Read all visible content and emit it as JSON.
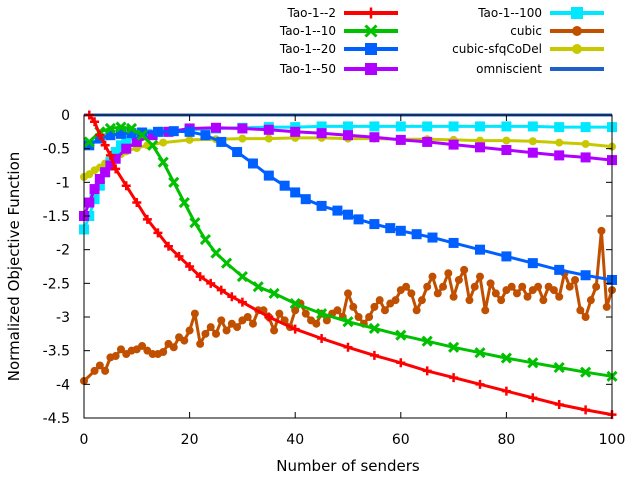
{
  "chart_data": {
    "type": "line",
    "title": "",
    "xlabel": "Number of senders",
    "ylabel": "Normalized Objective Function",
    "xlim": [
      0,
      100
    ],
    "ylim": [
      -4.5,
      0
    ],
    "xticks": [
      0,
      20,
      40,
      60,
      80,
      100
    ],
    "yticks": [
      0,
      -0.5,
      -1,
      -1.5,
      -2,
      -2.5,
      -3,
      -3.5,
      -4,
      -4.5
    ],
    "xtick_labels": [
      "0",
      "20",
      "40",
      "60",
      "80",
      "100"
    ],
    "ytick_labels": [
      "0",
      "-0.5",
      "-1",
      "-1.5",
      "-2",
      "-2.5",
      "-3",
      "-3.5",
      "-4",
      "-4.5"
    ],
    "grid": false,
    "legend": "top",
    "series": [
      {
        "name": "Tao-1--2",
        "color": "#ff0000",
        "marker": "plus",
        "x": [
          1,
          2,
          3,
          4,
          5,
          6,
          8,
          10,
          12,
          14,
          16,
          18,
          20,
          22,
          24,
          26,
          28,
          30,
          35,
          40,
          45,
          50,
          55,
          60,
          65,
          70,
          75,
          80,
          85,
          90,
          95,
          100
        ],
        "y": [
          0,
          -0.1,
          -0.3,
          -0.45,
          -0.6,
          -0.8,
          -1.05,
          -1.3,
          -1.55,
          -1.75,
          -1.95,
          -2.1,
          -2.25,
          -2.4,
          -2.5,
          -2.6,
          -2.7,
          -2.78,
          -3.0,
          -3.18,
          -3.32,
          -3.45,
          -3.57,
          -3.68,
          -3.8,
          -3.9,
          -4.0,
          -4.1,
          -4.2,
          -4.3,
          -4.38,
          -4.45
        ]
      },
      {
        "name": "Tao-1--10",
        "color": "#00c000",
        "marker": "x",
        "x": [
          1,
          3,
          5,
          7,
          9,
          11,
          13,
          15,
          17,
          19,
          21,
          23,
          25,
          27,
          30,
          33,
          36,
          40,
          45,
          50,
          55,
          60,
          65,
          70,
          75,
          80,
          85,
          90,
          95,
          100
        ],
        "y": [
          -0.4,
          -0.25,
          -0.2,
          -0.18,
          -0.2,
          -0.3,
          -0.45,
          -0.7,
          -1.0,
          -1.3,
          -1.6,
          -1.85,
          -2.05,
          -2.2,
          -2.4,
          -2.55,
          -2.65,
          -2.8,
          -2.95,
          -3.07,
          -3.17,
          -3.27,
          -3.36,
          -3.45,
          -3.53,
          -3.61,
          -3.68,
          -3.75,
          -3.82,
          -3.88
        ]
      },
      {
        "name": "Tao-1--20",
        "color": "#0060ff",
        "marker": "square",
        "x": [
          1,
          3,
          5,
          7,
          9,
          11,
          14,
          17,
          20,
          23,
          26,
          29,
          32,
          35,
          38,
          40,
          42,
          45,
          48,
          50,
          52,
          55,
          58,
          60,
          63,
          66,
          70,
          75,
          80,
          85,
          90,
          95,
          100
        ],
        "y": [
          -0.45,
          -0.35,
          -0.3,
          -0.28,
          -0.27,
          -0.26,
          -0.25,
          -0.24,
          -0.25,
          -0.3,
          -0.4,
          -0.55,
          -0.72,
          -0.9,
          -1.05,
          -1.15,
          -1.25,
          -1.35,
          -1.42,
          -1.48,
          -1.55,
          -1.62,
          -1.68,
          -1.72,
          -1.77,
          -1.82,
          -1.9,
          -2.0,
          -2.1,
          -2.2,
          -2.3,
          -2.38,
          -2.45
        ]
      },
      {
        "name": "Tao-1--50",
        "color": "#b000ff",
        "marker": "square-filled",
        "x": [
          0,
          1,
          2,
          3,
          4,
          5,
          6,
          8,
          10,
          13,
          16,
          20,
          25,
          30,
          35,
          40,
          45,
          50,
          55,
          60,
          65,
          70,
          75,
          80,
          85,
          90,
          95,
          100
        ],
        "y": [
          -1.5,
          -1.3,
          -1.1,
          -0.95,
          -0.85,
          -0.75,
          -0.65,
          -0.5,
          -0.4,
          -0.3,
          -0.25,
          -0.2,
          -0.19,
          -0.2,
          -0.22,
          -0.25,
          -0.27,
          -0.3,
          -0.33,
          -0.37,
          -0.4,
          -0.44,
          -0.48,
          -0.52,
          -0.56,
          -0.6,
          -0.63,
          -0.67
        ]
      },
      {
        "name": "Tao-1--100",
        "color": "#00e8ff",
        "marker": "square",
        "x": [
          0,
          1,
          2,
          3,
          4,
          5,
          6,
          7,
          8,
          10,
          12,
          15,
          20,
          25,
          30,
          35,
          40,
          45,
          50,
          55,
          60,
          65,
          70,
          75,
          80,
          85,
          90,
          95,
          100
        ],
        "y": [
          -1.7,
          -1.5,
          -1.25,
          -1.05,
          -0.85,
          -0.7,
          -0.55,
          -0.45,
          -0.38,
          -0.32,
          -0.28,
          -0.25,
          -0.22,
          -0.2,
          -0.19,
          -0.18,
          -0.18,
          -0.17,
          -0.17,
          -0.17,
          -0.17,
          -0.17,
          -0.17,
          -0.17,
          -0.17,
          -0.17,
          -0.18,
          -0.18,
          -0.18
        ]
      },
      {
        "name": "cubic",
        "color": "#c05000",
        "marker": "circle",
        "x": [
          0,
          2,
          3,
          4,
          5,
          6,
          7,
          8,
          9,
          10,
          11,
          12,
          13,
          14,
          15,
          16,
          17,
          18,
          19,
          20,
          21,
          22,
          23,
          24,
          25,
          26,
          27,
          28,
          29,
          30,
          31,
          32,
          33,
          34,
          35,
          36,
          37,
          38,
          39,
          40,
          41,
          42,
          43,
          44,
          45,
          46,
          47,
          48,
          49,
          50,
          51,
          52,
          53,
          54,
          55,
          56,
          57,
          58,
          59,
          60,
          61,
          62,
          63,
          64,
          65,
          66,
          67,
          68,
          69,
          70,
          71,
          72,
          73,
          74,
          75,
          76,
          77,
          78,
          79,
          80,
          81,
          82,
          83,
          84,
          85,
          86,
          87,
          88,
          89,
          90,
          91,
          92,
          93,
          94,
          95,
          96,
          97,
          98,
          99,
          100
        ],
        "y": [
          -3.95,
          -3.8,
          -3.72,
          -3.8,
          -3.6,
          -3.58,
          -3.48,
          -3.55,
          -3.5,
          -3.48,
          -3.43,
          -3.5,
          -3.55,
          -3.55,
          -3.52,
          -3.4,
          -3.45,
          -3.3,
          -3.35,
          -3.2,
          -2.95,
          -3.4,
          -3.25,
          -3.15,
          -3.25,
          -3.05,
          -3.2,
          -3.1,
          -3.15,
          -3.05,
          -3.0,
          -3.1,
          -2.9,
          -2.9,
          -3.0,
          -3.2,
          -2.95,
          -3.05,
          -3.15,
          -2.9,
          -2.8,
          -2.95,
          -3.05,
          -3.1,
          -2.95,
          -3.05,
          -2.95,
          -2.9,
          -3.0,
          -2.65,
          -2.85,
          -3.0,
          -3.1,
          -3.0,
          -2.85,
          -2.75,
          -2.9,
          -2.8,
          -2.75,
          -2.6,
          -2.55,
          -2.65,
          -2.9,
          -2.75,
          -2.55,
          -2.4,
          -2.65,
          -2.55,
          -2.35,
          -2.7,
          -2.45,
          -2.3,
          -2.75,
          -2.55,
          -2.4,
          -2.9,
          -2.5,
          -2.65,
          -2.75,
          -2.6,
          -2.55,
          -2.65,
          -2.55,
          -2.7,
          -2.6,
          -2.55,
          -2.75,
          -2.55,
          -2.6,
          -2.7,
          -2.35,
          -2.55,
          -2.45,
          -2.9,
          -3.0,
          -2.75,
          -2.55,
          -1.72,
          -2.85,
          -2.6
        ]
      },
      {
        "name": "cubic-sfqCoDel",
        "color": "#c8c800",
        "marker": "circle",
        "x": [
          0,
          1,
          2,
          3,
          4,
          5,
          6,
          7,
          8,
          10,
          12,
          15,
          20,
          25,
          30,
          35,
          40,
          45,
          50,
          55,
          60,
          65,
          70,
          75,
          80,
          85,
          90,
          95,
          100
        ],
        "y": [
          -0.92,
          -0.88,
          -0.82,
          -0.78,
          -0.72,
          -0.66,
          -0.62,
          -0.58,
          -0.54,
          -0.49,
          -0.45,
          -0.41,
          -0.37,
          -0.36,
          -0.35,
          -0.35,
          -0.34,
          -0.34,
          -0.35,
          -0.35,
          -0.36,
          -0.36,
          -0.37,
          -0.38,
          -0.38,
          -0.39,
          -0.41,
          -0.43,
          -0.47
        ]
      },
      {
        "name": "omniscient",
        "color": "#1f5fcc",
        "marker": "none",
        "x": [
          0,
          100
        ],
        "y": [
          0,
          0
        ]
      }
    ]
  }
}
